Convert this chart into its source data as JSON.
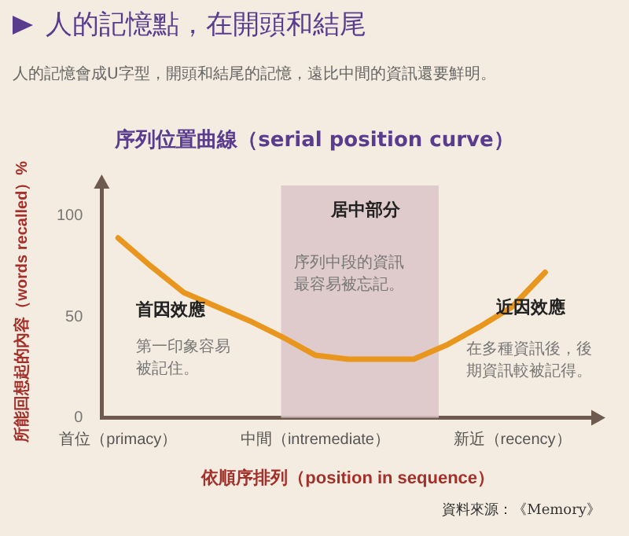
{
  "chart_data": {
    "type": "line",
    "title": "人的記憶點，在開頭和結尾",
    "subtitle": "人的記憶會成U字型，開頭和結尾的記憶，遠比中間的資訊還要鮮明。",
    "xlabel": "依順序排列（position in sequence）",
    "ylabel": "所能回想起的內容（words recalled）%",
    "categories": [
      "首位（primacy）",
      null,
      null,
      null,
      null,
      null,
      "中間（intremediate）",
      null,
      null,
      null,
      null,
      null,
      "新近（recency）",
      null,
      null
    ],
    "series": [
      {
        "color": "#e8961e",
        "values": [
          89,
          75,
          62,
          55,
          48,
          40,
          31,
          29,
          29,
          29,
          36,
          45,
          55,
          72,
          null
        ]
      }
    ],
    "ylim": [
      0,
      115
    ],
    "yticks": [
      0,
      50,
      100
    ],
    "annotations": [
      "序列位置曲線（serial position curve）",
      "首因效應",
      "第一印象容易被記住。",
      "居中部分",
      "序列中段的資訊最容易被忘記。",
      "近因效應",
      "在多種資訊後，後期資訊較被記得。",
      "資料來源：《Memory》"
    ],
    "grid": false,
    "legend": false,
    "marker": "none",
    "line_style": "solid"
  }
}
